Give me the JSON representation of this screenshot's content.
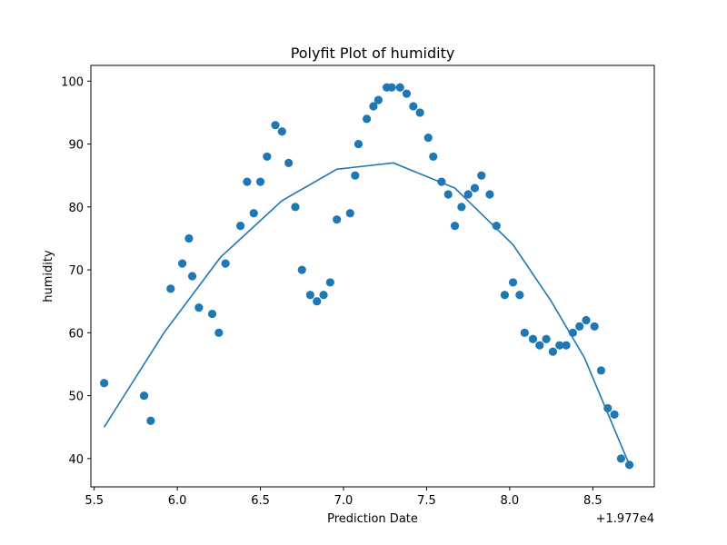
{
  "chart_data": {
    "type": "scatter",
    "title": "Polyfit Plot of humidity",
    "xlabel": "Prediction Date",
    "ylabel": "humidity",
    "x_offset_label": "+1.977e4",
    "xlim": [
      19775.48,
      19778.87
    ],
    "ylim": [
      35.5,
      102.5
    ],
    "xticks": [
      5.5,
      6.0,
      6.5,
      7.0,
      7.5,
      8.0,
      8.5
    ],
    "xtick_labels": [
      "5.5",
      "6.0",
      "6.5",
      "7.0",
      "7.5",
      "8.0",
      "8.5"
    ],
    "yticks": [
      40,
      50,
      60,
      70,
      80,
      90,
      100
    ],
    "ytick_labels": [
      "40",
      "50",
      "60",
      "70",
      "80",
      "90",
      "100"
    ],
    "grid": false,
    "colors": {
      "series": "#1f77b4"
    },
    "series": [
      {
        "kind": "scatter",
        "x": [
          19775.56,
          19775.8,
          19775.84,
          19775.96,
          19776.03,
          19776.07,
          19776.09,
          19776.13,
          19776.21,
          19776.25,
          19776.29,
          19776.38,
          19776.42,
          19776.46,
          19776.5,
          19776.54,
          19776.59,
          19776.63,
          19776.67,
          19776.71,
          19776.75,
          19776.8,
          19776.84,
          19776.88,
          19776.92,
          19776.96,
          19777.04,
          19777.07,
          19777.09,
          19777.14,
          19777.18,
          19777.21,
          19777.26,
          19777.29,
          19777.34,
          19777.38,
          19777.42,
          19777.46,
          19777.51,
          19777.54,
          19777.59,
          19777.63,
          19777.67,
          19777.71,
          19777.75,
          19777.79,
          19777.83,
          19777.88,
          19777.92,
          19777.97,
          19778.02,
          19778.06,
          19778.09,
          19778.14,
          19778.18,
          19778.22,
          19778.26,
          19778.3,
          19778.34,
          19778.38,
          19778.42,
          19778.46,
          19778.51,
          19778.55,
          19778.59,
          19778.63,
          19778.67,
          19778.72
        ],
        "y": [
          52,
          50,
          46,
          67,
          71,
          75,
          69,
          64,
          63,
          60,
          71,
          77,
          84,
          79,
          84,
          88,
          93,
          92,
          87,
          80,
          70,
          66,
          65,
          66,
          68,
          78,
          79,
          85,
          90,
          94,
          96,
          97,
          99,
          99,
          99,
          98,
          96,
          95,
          91,
          88,
          84,
          82,
          77,
          80,
          82,
          83,
          85,
          82,
          77,
          66,
          68,
          66,
          60,
          59,
          58,
          59,
          57,
          58,
          58,
          60,
          61,
          62,
          61,
          54,
          48,
          47,
          40,
          39
        ]
      },
      {
        "kind": "line",
        "x": [
          19775.56,
          19775.92,
          19776.26,
          19776.63,
          19776.96,
          19777.3,
          19777.67,
          19778.02,
          19778.25,
          19778.45,
          19778.72
        ],
        "y": [
          45,
          60,
          72,
          81,
          86,
          87,
          83,
          74,
          65,
          56,
          39
        ]
      }
    ]
  }
}
